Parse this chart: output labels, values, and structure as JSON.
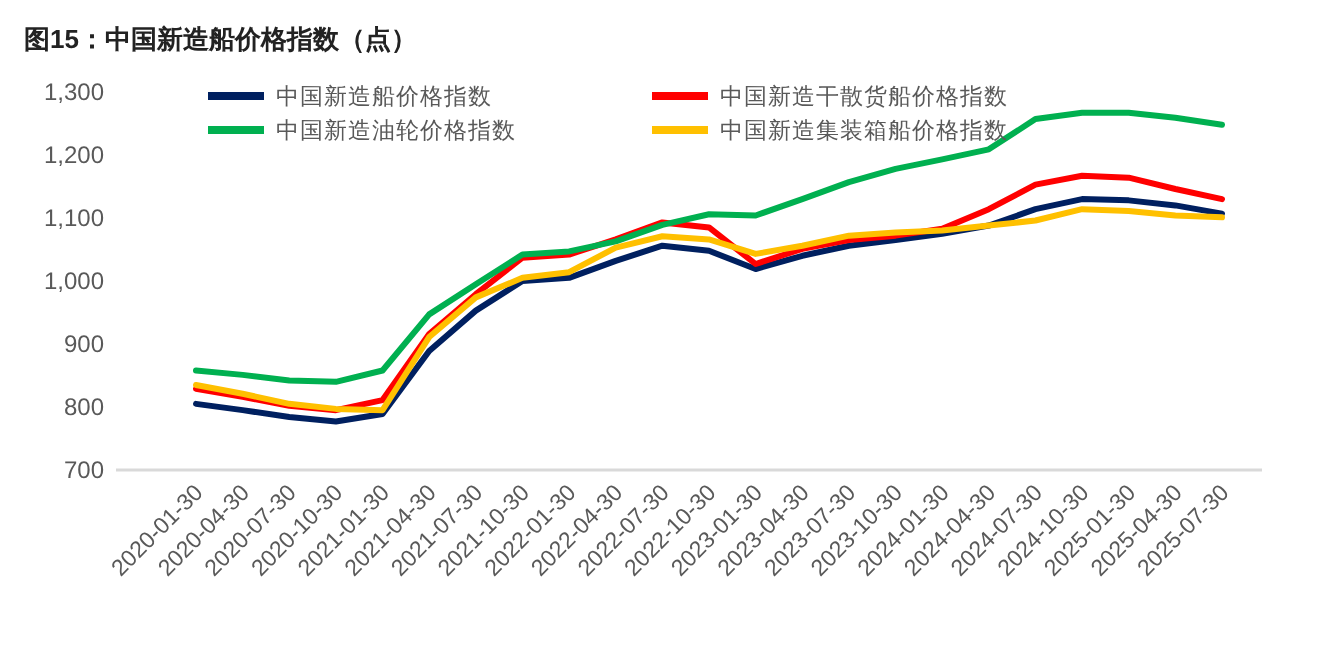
{
  "chart_data": {
    "type": "line",
    "title": "图15：中国新造船价格指数（点）",
    "categories": [
      "2020-01-30",
      "2020-04-30",
      "2020-07-30",
      "2020-10-30",
      "2021-01-30",
      "2021-04-30",
      "2021-07-30",
      "2021-10-30",
      "2022-01-30",
      "2022-04-30",
      "2022-07-30",
      "2022-10-30",
      "2023-01-30",
      "2023-04-30",
      "2023-07-30",
      "2023-10-30",
      "2024-01-30",
      "2024-04-30",
      "2024-07-30",
      "2024-10-30",
      "2025-01-30",
      "2025-04-30",
      "2025-07-30"
    ],
    "series": [
      {
        "name": "中国新造船价格指数",
        "color": "#002060",
        "values": [
          805,
          795,
          784,
          777,
          789,
          889,
          953,
          1000,
          1005,
          1032,
          1056,
          1048,
          1019,
          1040,
          1056,
          1065,
          1075,
          1088,
          1114,
          1130,
          1128,
          1120,
          1107
        ]
      },
      {
        "name": "中国新造干散货船价格指数",
        "color": "#ff0000",
        "values": [
          829,
          816,
          802,
          795,
          811,
          916,
          979,
          1037,
          1042,
          1066,
          1093,
          1085,
          1027,
          1051,
          1065,
          1072,
          1083,
          1114,
          1153,
          1167,
          1164,
          1146,
          1130
        ]
      },
      {
        "name": "中国新造油轮价格指数",
        "color": "#00b050",
        "values": [
          858,
          851,
          842,
          840,
          858,
          947,
          995,
          1042,
          1047,
          1063,
          1089,
          1106,
          1104,
          1130,
          1157,
          1178,
          1193,
          1209,
          1257,
          1267,
          1267,
          1259,
          1248
        ]
      },
      {
        "name": "中国新造集装箱船价格指数",
        "color": "#ffc000",
        "values": [
          835,
          821,
          805,
          797,
          795,
          911,
          974,
          1005,
          1014,
          1053,
          1071,
          1066,
          1043,
          1056,
          1072,
          1077,
          1080,
          1088,
          1096,
          1114,
          1111,
          1104,
          1101
        ]
      }
    ],
    "ylim": [
      700,
      1300
    ],
    "yticks": [
      700,
      800,
      900,
      {
        "value": 1000,
        "label": "1,000"
      },
      {
        "value": 1100,
        "label": "1,100"
      },
      {
        "value": 1200,
        "label": "1,200"
      },
      {
        "value": 1300,
        "label": "1,300"
      }
    ],
    "grid": false,
    "legend": "top",
    "marker": "none",
    "line_style": "solid"
  }
}
